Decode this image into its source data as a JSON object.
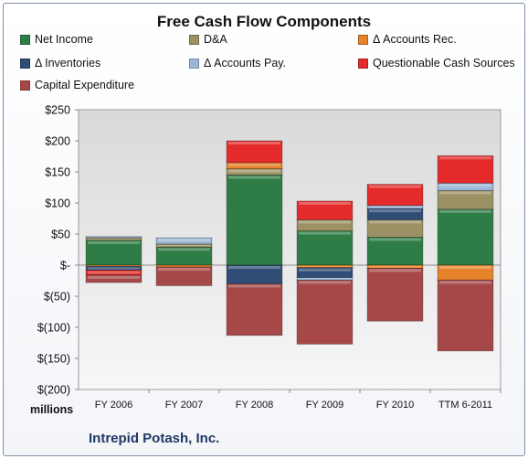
{
  "chart_data": {
    "type": "bar",
    "stacked": true,
    "title": "Free Cash Flow Components",
    "categories": [
      "FY 2006",
      "FY 2007",
      "FY 2008",
      "FY 2009",
      "FY 2010",
      "TTM 6-2011"
    ],
    "y_ticks": [
      "$250",
      "$200",
      "$150",
      "$100",
      "$50",
      "$-",
      "$(50)",
      "$(100)",
      "$(150)",
      "$(200)"
    ],
    "ylim": [
      -200,
      250
    ],
    "units_label": "millions",
    "footer": "Intrepid Potash, Inc.",
    "legend_position": "top",
    "series": [
      {
        "name": "Net Income",
        "color": "#2e7d46",
        "values": [
          40,
          29,
          145,
          55,
          45,
          90
        ]
      },
      {
        "name": "D&A",
        "color": "#9c9164",
        "values": [
          4,
          5,
          10,
          18,
          28,
          30
        ]
      },
      {
        "name": "Δ Accounts Rec.",
        "color": "#e5822a",
        "values": [
          -2,
          -3,
          10,
          -4,
          -5,
          -24
        ]
      },
      {
        "name": "Δ Inventories",
        "color": "#2f4d75",
        "values": [
          -6,
          0,
          -30,
          -16,
          18,
          0
        ]
      },
      {
        "name": "Δ Accounts Pay.",
        "color": "#9bb7d8",
        "values": [
          2,
          10,
          0,
          -4,
          5,
          12
        ]
      },
      {
        "name": "Questionable Cash Sources",
        "color": "#e42a2a",
        "values": [
          -8,
          0,
          35,
          30,
          34,
          44
        ]
      },
      {
        "name": "Capital Expenditure",
        "color": "#a64848",
        "values": [
          -12,
          -30,
          -83,
          -103,
          -85,
          -114
        ]
      }
    ]
  }
}
